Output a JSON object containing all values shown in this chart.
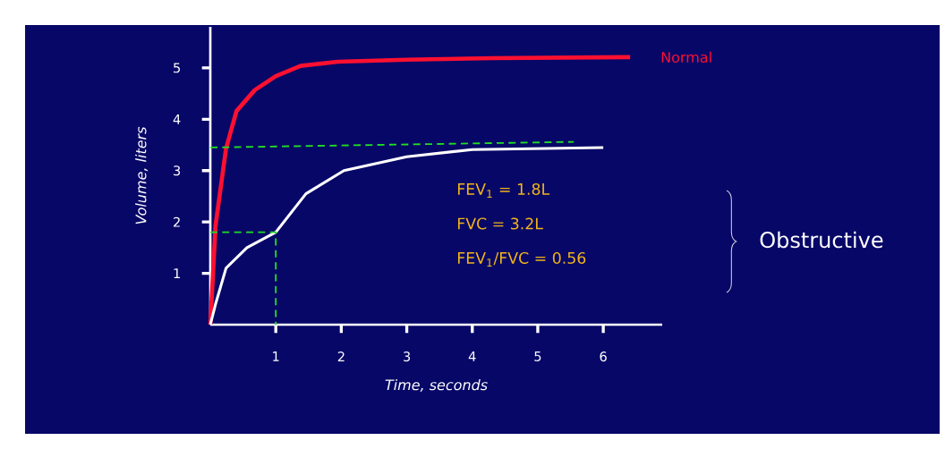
{
  "chart_data": {
    "type": "line",
    "xlabel": "Time, seconds",
    "ylabel": "Volume, liters",
    "xlim": [
      0,
      6.9
    ],
    "ylim": [
      0,
      5.8
    ],
    "xticks": [
      1,
      2,
      3,
      4,
      5,
      6
    ],
    "yticks": [
      1,
      2,
      3,
      4,
      5
    ],
    "grid": false,
    "legend": false,
    "marker": "none",
    "line_style": "solid",
    "series": [
      {
        "name": "Normal",
        "color": "#ff1030",
        "x": [
          0,
          0.08,
          0.24,
          0.4,
          0.68,
          1.0,
          1.38,
          1.95,
          3.0,
          4.32,
          6.41
        ],
        "values": [
          0,
          1.93,
          3.43,
          4.16,
          4.57,
          4.84,
          5.04,
          5.12,
          5.16,
          5.19,
          5.21
        ]
      },
      {
        "color": "#ffffff",
        "x": [
          0,
          0.08,
          0.24,
          0.56,
          1.0,
          1.46,
          2.04,
          3.0,
          4.0,
          6.0
        ],
        "values": [
          0,
          0.4,
          1.1,
          1.5,
          1.8,
          2.55,
          3.0,
          3.27,
          3.41,
          3.45
        ]
      },
      {
        "color": "#22dd22",
        "line_style": "dashed",
        "x": [
          0,
          5.55
        ],
        "values": [
          3.45,
          3.56
        ]
      },
      {
        "color": "#22dd22",
        "line_style": "dashed",
        "x": [
          0,
          1,
          1
        ],
        "values": [
          1.8,
          1.8,
          0
        ]
      }
    ],
    "annotations": [
      "FEV$_{1}$ = 1.8L",
      "FVC = 3.2L",
      "FEV$_{1}$/FVC = 0.56",
      "Obstructive"
    ]
  }
}
